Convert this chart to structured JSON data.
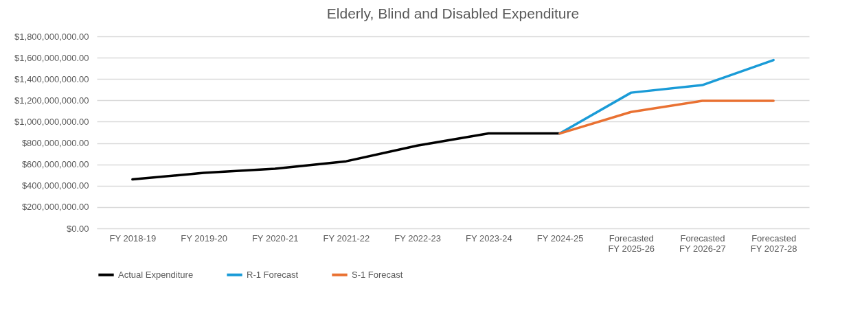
{
  "chart_data": {
    "type": "line",
    "title": "Elderly, Blind and Disabled Expenditure",
    "categories": [
      "FY 2018-19",
      "FY 2019-20",
      "FY 2020-21",
      "FY 2021-22",
      "FY 2022-23",
      "FY 2023-24",
      "FY 2024-25",
      "Forecasted FY 2025-26",
      "Forecasted FY 2026-27",
      "Forecasted FY 2027-28"
    ],
    "series": [
      {
        "name": "Actual Expenditure",
        "color": "#000000",
        "values": [
          459000000,
          520000000,
          560000000,
          629000000,
          776000000,
          890000000,
          890000000,
          null,
          null,
          null
        ]
      },
      {
        "name": "R-1 Forecast",
        "color": "#1a9bd7",
        "values": [
          null,
          null,
          null,
          null,
          null,
          null,
          890000000,
          1272000000,
          1343000000,
          1578000000
        ]
      },
      {
        "name": "S-1 Forecast",
        "color": "#e97132",
        "values": [
          null,
          null,
          null,
          null,
          null,
          null,
          890000000,
          1091000000,
          1196000000,
          1196000000
        ]
      }
    ],
    "ylim": [
      0,
      1800000000
    ],
    "yticks": [
      {
        "value": 0,
        "label": "$0.00"
      },
      {
        "value": 200000000,
        "label": "$200,000,000.00"
      },
      {
        "value": 400000000,
        "label": "$400,000,000.00"
      },
      {
        "value": 600000000,
        "label": "$600,000,000.00"
      },
      {
        "value": 800000000,
        "label": "$800,000,000.00"
      },
      {
        "value": 1000000000,
        "label": "$1,000,000,000.00"
      },
      {
        "value": 1200000000,
        "label": "$1,200,000,000.00"
      },
      {
        "value": 1400000000,
        "label": "$1,400,000,000.00"
      },
      {
        "value": 1600000000,
        "label": "$1,600,000,000.00"
      },
      {
        "value": 1800000000,
        "label": "$1,800,000,000.00"
      }
    ],
    "grid": "y",
    "legend": "bottom",
    "marker": "none",
    "line_style": "solid"
  }
}
